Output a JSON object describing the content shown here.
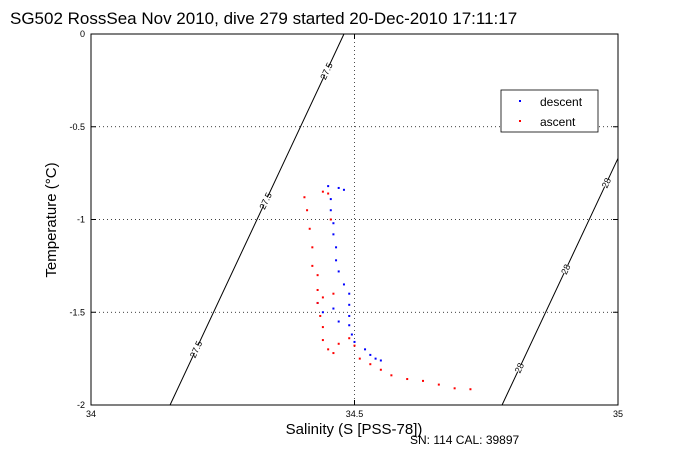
{
  "chart_data": {
    "type": "scatter",
    "title": "SG502 RossSea Nov 2010, dive 279 started 20-Dec-2010 17:11:17",
    "xlabel": "Salinity (S [PSS-78])",
    "ylabel": "Temperature (°C)",
    "xlim": [
      34,
      35
    ],
    "ylim": [
      -2,
      0
    ],
    "x_ticks": [
      "34",
      "34.5",
      "35"
    ],
    "y_ticks": [
      "0",
      "-0.5",
      "-1",
      "-1.5",
      "-2"
    ],
    "grid": true,
    "legend": "top-right",
    "footnote": "SN: 114  CAL: 39897",
    "isopycnals": [
      {
        "label": "27.5",
        "points": [
          [
            34.15,
            -2.0
          ],
          [
            34.48,
            0.0
          ]
        ]
      },
      {
        "label": "28",
        "points": [
          [
            34.78,
            -2.0
          ],
          [
            35.0,
            -0.67
          ]
        ]
      }
    ],
    "series": [
      {
        "name": "descent",
        "color": "#0000ff",
        "points": [
          [
            34.45,
            -0.82
          ],
          [
            34.47,
            -0.83
          ],
          [
            34.48,
            -0.84
          ],
          [
            34.455,
            -0.89
          ],
          [
            34.455,
            -0.95
          ],
          [
            34.46,
            -1.02
          ],
          [
            34.46,
            -1.08
          ],
          [
            34.465,
            -1.15
          ],
          [
            34.465,
            -1.22
          ],
          [
            34.47,
            -1.28
          ],
          [
            34.48,
            -1.35
          ],
          [
            34.49,
            -1.4
          ],
          [
            34.49,
            -1.46
          ],
          [
            34.49,
            -1.52
          ],
          [
            34.49,
            -1.57
          ],
          [
            34.495,
            -1.62
          ],
          [
            34.5,
            -1.66
          ],
          [
            34.52,
            -1.7
          ],
          [
            34.53,
            -1.73
          ],
          [
            34.54,
            -1.75
          ],
          [
            34.55,
            -1.76
          ],
          [
            34.43,
            -1.45
          ],
          [
            34.44,
            -1.5
          ],
          [
            34.46,
            -1.48
          ],
          [
            34.47,
            -1.55
          ]
        ]
      },
      {
        "name": "ascent",
        "color": "#ff0000",
        "points": [
          [
            34.405,
            -0.88
          ],
          [
            34.41,
            -0.95
          ],
          [
            34.415,
            -1.05
          ],
          [
            34.42,
            -1.15
          ],
          [
            34.42,
            -1.25
          ],
          [
            34.43,
            -1.3
          ],
          [
            34.43,
            -1.38
          ],
          [
            34.43,
            -1.45
          ],
          [
            34.435,
            -1.52
          ],
          [
            34.44,
            -1.58
          ],
          [
            34.44,
            -1.65
          ],
          [
            34.45,
            -1.7
          ],
          [
            34.46,
            -1.72
          ],
          [
            34.47,
            -1.67
          ],
          [
            34.49,
            -1.64
          ],
          [
            34.5,
            -1.68
          ],
          [
            34.51,
            -1.75
          ],
          [
            34.53,
            -1.78
          ],
          [
            34.55,
            -1.81
          ],
          [
            34.57,
            -1.84
          ],
          [
            34.6,
            -1.86
          ],
          [
            34.63,
            -1.87
          ],
          [
            34.66,
            -1.89
          ],
          [
            34.69,
            -1.91
          ],
          [
            34.72,
            -1.915
          ],
          [
            34.44,
            -0.85
          ],
          [
            34.45,
            -0.86
          ],
          [
            34.455,
            -1.0
          ],
          [
            34.46,
            -1.4
          ],
          [
            34.44,
            -1.42
          ]
        ]
      }
    ]
  }
}
